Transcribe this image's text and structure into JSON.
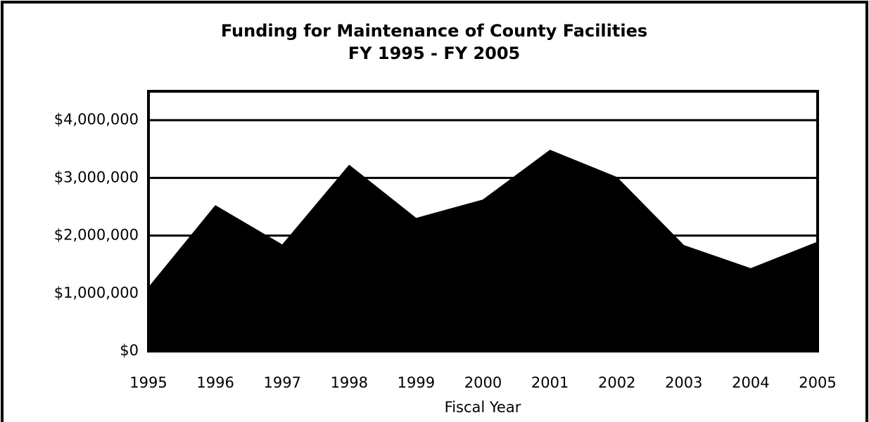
{
  "chart_data": {
    "type": "area",
    "title": [
      "Funding for Maintenance of County Facilities",
      "FY 1995 - FY 2005"
    ],
    "xlabel": "Fiscal Year",
    "categories": [
      "1995",
      "1996",
      "1997",
      "1998",
      "1999",
      "2000",
      "2001",
      "2002",
      "2003",
      "2004",
      "2005"
    ],
    "values": [
      1100000,
      2520000,
      1840000,
      3220000,
      2300000,
      2620000,
      3480000,
      3010000,
      1830000,
      1430000,
      1890000
    ],
    "color": "#000000",
    "ylim": [
      0,
      4500000
    ],
    "yticks": [
      {
        "value": 0,
        "label": "$0"
      },
      {
        "value": 1000000,
        "label": "$1,000,000"
      },
      {
        "value": 2000000,
        "label": "$2,000,000"
      },
      {
        "value": 3000000,
        "label": "$3,000,000"
      },
      {
        "value": 4000000,
        "label": "$4,000,000"
      }
    ],
    "grid": true
  }
}
